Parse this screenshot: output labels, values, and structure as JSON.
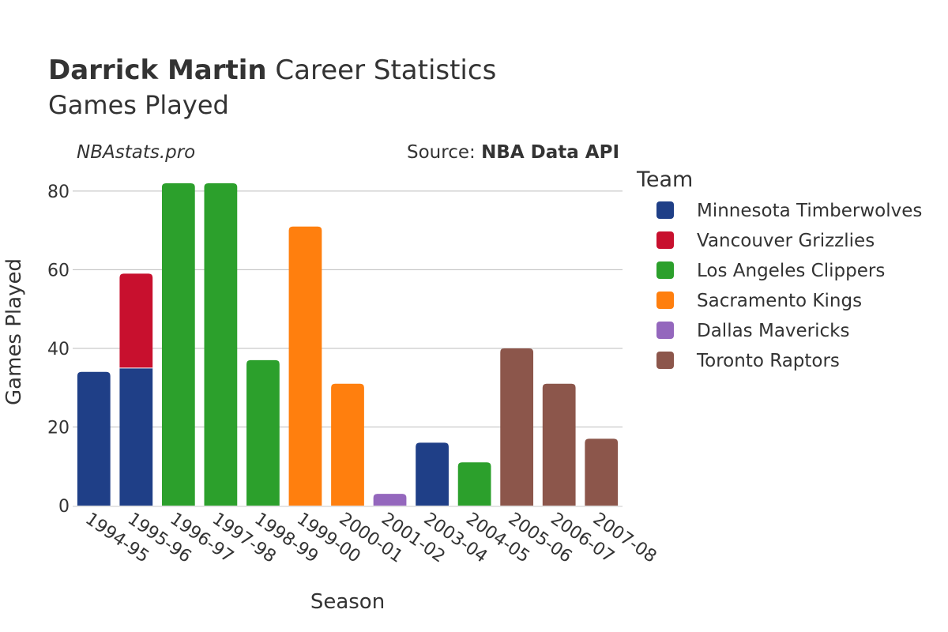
{
  "header": {
    "title_bold": "Darrick Martin",
    "title_rest": " Career Statistics",
    "subtitle": "Games Played"
  },
  "credits": {
    "site": "NBAstats.pro",
    "source_prefix": "Source: ",
    "source_name": "NBA Data API"
  },
  "legend": {
    "title": "Team"
  },
  "chart_data": {
    "type": "bar",
    "stacked": true,
    "xlabel": "Season",
    "ylabel": "Games Played",
    "ylim": [
      0,
      84
    ],
    "yticks": [
      0,
      20,
      40,
      60,
      80
    ],
    "grid": true,
    "legend_position": "right",
    "categories": [
      "1994-95",
      "1995-96",
      "1996-97",
      "1997-98",
      "1998-99",
      "1999-00",
      "2000-01",
      "2001-02",
      "2003-04",
      "2004-05",
      "2005-06",
      "2006-07",
      "2007-08"
    ],
    "series": [
      {
        "name": "Minnesota Timberwolves",
        "color": "#1f3f87",
        "values": [
          34,
          35,
          0,
          0,
          0,
          0,
          0,
          0,
          16,
          0,
          0,
          0,
          0
        ]
      },
      {
        "name": "Vancouver Grizzlies",
        "color": "#c8102e",
        "values": [
          0,
          24,
          0,
          0,
          0,
          0,
          0,
          0,
          0,
          0,
          0,
          0,
          0
        ]
      },
      {
        "name": "Los Angeles Clippers",
        "color": "#2ca02c",
        "values": [
          0,
          0,
          82,
          82,
          37,
          0,
          0,
          0,
          0,
          11,
          0,
          0,
          0
        ]
      },
      {
        "name": "Sacramento Kings",
        "color": "#ff7f0e",
        "values": [
          0,
          0,
          0,
          0,
          0,
          71,
          31,
          0,
          0,
          0,
          0,
          0,
          0
        ]
      },
      {
        "name": "Dallas Mavericks",
        "color": "#9467bd",
        "values": [
          0,
          0,
          0,
          0,
          0,
          0,
          0,
          3,
          0,
          0,
          0,
          0,
          0
        ]
      },
      {
        "name": "Toronto Raptors",
        "color": "#8c564b",
        "values": [
          0,
          0,
          0,
          0,
          0,
          0,
          0,
          0,
          0,
          0,
          40,
          31,
          17
        ]
      }
    ]
  }
}
